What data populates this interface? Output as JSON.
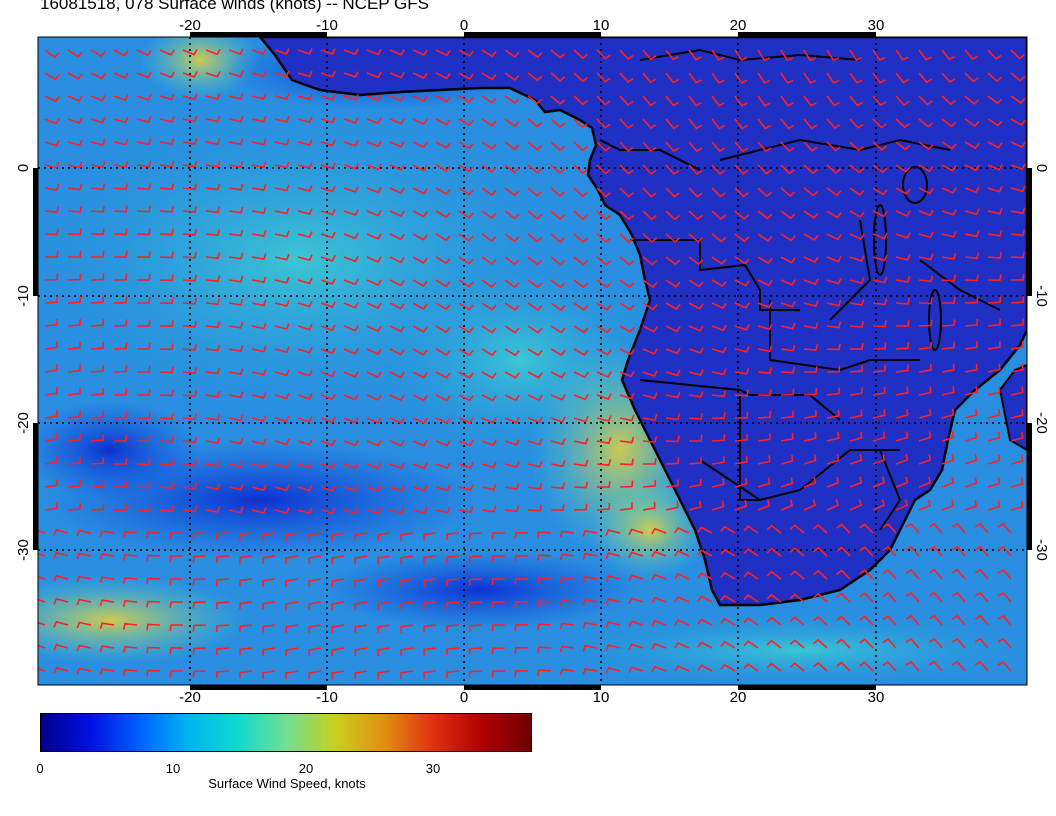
{
  "title": "16081518, 078 Surface winds (knots) -- NCEP GFS",
  "map": {
    "lon_range": [
      -31,
      41
    ],
    "lat_range": [
      -40,
      10
    ],
    "lon_tick_labels": [
      "-20",
      "-10",
      "0",
      "10",
      "20",
      "30"
    ],
    "lat_tick_labels": [
      "0",
      "-10",
      "-20",
      "-30"
    ],
    "colors": {
      "ocean_low": "#1a3bd6",
      "ocean_mid": "#2fa8e0",
      "ocean_high": "#4fd4c8",
      "jet": "#e0c030",
      "land": "#2433c8",
      "barb": "#ff2020",
      "coast": "#000000"
    }
  },
  "colorbar": {
    "tick_labels": [
      "0",
      "10",
      "20",
      "30"
    ],
    "range_knots": [
      0,
      37
    ],
    "title": "Surface Wind Speed, knots",
    "stops": [
      "#00008b",
      "#0010e0",
      "#0060ff",
      "#00b4f0",
      "#10d8d0",
      "#70e090",
      "#c8d020",
      "#e09010",
      "#e03010",
      "#b00000",
      "#700000"
    ]
  }
}
